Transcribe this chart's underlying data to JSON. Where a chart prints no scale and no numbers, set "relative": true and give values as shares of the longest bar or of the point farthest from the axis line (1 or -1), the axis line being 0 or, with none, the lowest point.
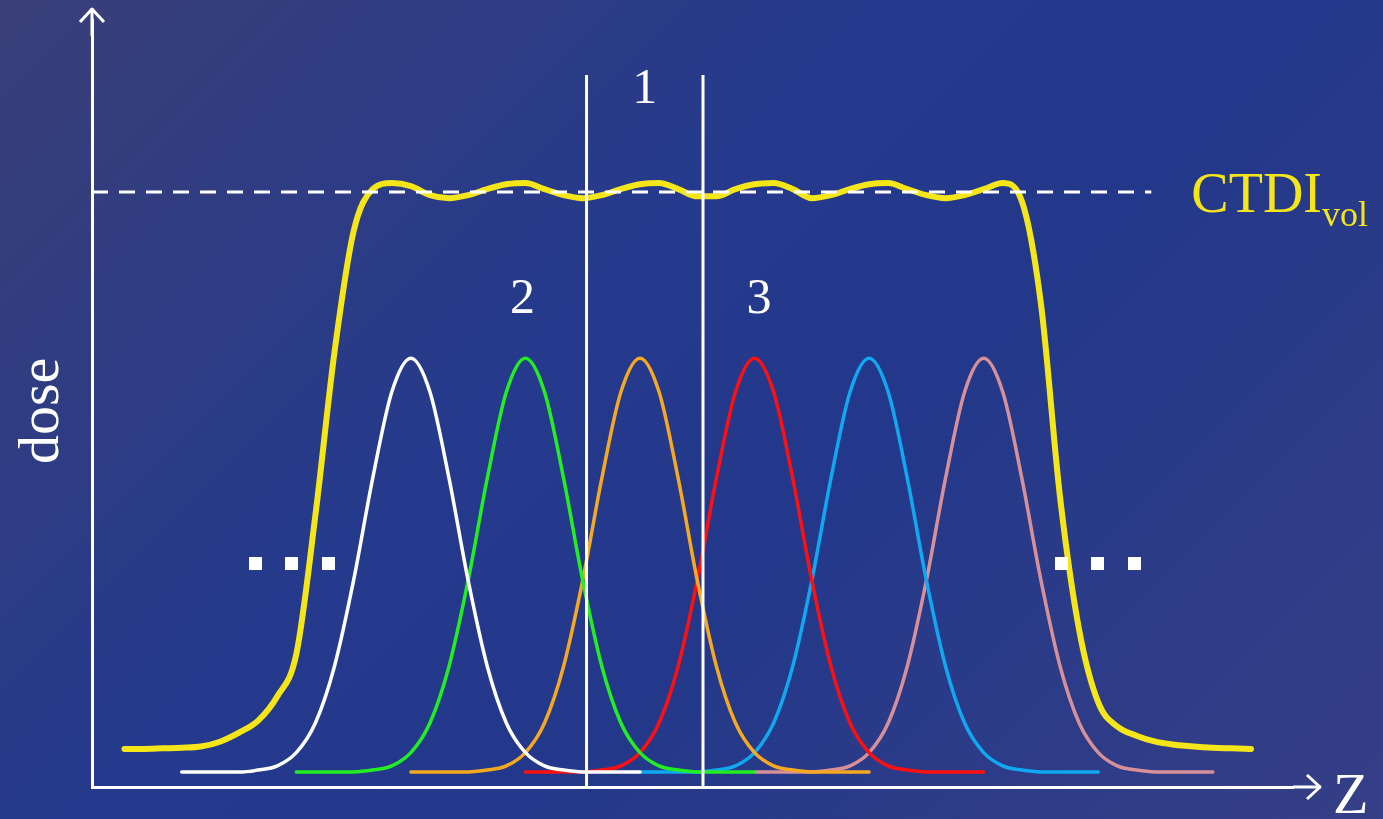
{
  "chart_data": {
    "type": "line",
    "relative": true,
    "xlabel": "Z",
    "ylabel": "dose",
    "tick_labels": false,
    "grid": false,
    "legend": false,
    "marker": "none",
    "line_style": "solid",
    "categories": [
      null,
      null,
      null,
      null,
      null,
      null,
      null,
      null,
      null,
      null,
      null,
      null,
      null,
      null,
      null,
      null,
      null,
      null,
      null,
      null,
      null,
      null,
      null,
      null,
      null,
      null,
      null,
      null,
      null,
      null,
      null,
      null,
      null,
      null,
      null,
      null,
      null,
      null,
      null,
      null,
      null,
      null,
      null,
      null,
      null,
      null,
      null,
      null,
      null,
      null,
      null,
      null,
      null,
      null,
      null,
      null,
      null,
      null,
      null,
      null
    ],
    "series": [
      {
        "color": "#f5e61a",
        "values": [
          0.063,
          0.063,
          0.064,
          0.065,
          0.067,
          0.075,
          0.09,
          0.11,
          0.15,
          0.22,
          0.45,
          0.72,
          0.92,
          0.99,
          1,
          0.995,
          0.98,
          0.975,
          0.98,
          0.99,
          0.998,
          1,
          0.99,
          0.98,
          0.975,
          0.98,
          0.99,
          0.998,
          1,
          0.99,
          0.978,
          0.978,
          0.99,
          0.998,
          1,
          0.99,
          0.975,
          0.98,
          0.99,
          0.998,
          1,
          0.99,
          0.98,
          0.975,
          0.98,
          0.99,
          1,
          0.97,
          0.8,
          0.48,
          0.26,
          0.14,
          0.1,
          0.085,
          0.075,
          0.07,
          0.067,
          0.065,
          0.064,
          0.063
        ]
      },
      {
        "color": "#ffffff",
        "values": [
          null,
          null,
          null,
          0.025,
          0.025,
          0.025,
          0.025,
          0.028,
          0.035,
          0.057,
          0.106,
          0.2,
          0.342,
          0.511,
          0.654,
          0.71,
          0.654,
          0.511,
          0.342,
          0.2,
          0.106,
          0.057,
          0.035,
          0.028,
          0.025,
          0.025,
          0.025,
          0.025,
          null,
          null,
          null,
          null,
          null,
          null,
          null,
          null,
          null,
          null,
          null,
          null,
          null,
          null,
          null,
          null,
          null,
          null,
          null,
          null,
          null,
          null,
          null,
          null,
          null,
          null,
          null,
          null,
          null,
          null,
          null,
          null
        ]
      },
      {
        "color": "#22ee22",
        "values": [
          null,
          null,
          null,
          null,
          null,
          null,
          null,
          null,
          null,
          0.025,
          0.025,
          0.025,
          0.025,
          0.028,
          0.035,
          0.057,
          0.106,
          0.2,
          0.342,
          0.511,
          0.654,
          0.71,
          0.654,
          0.511,
          0.342,
          0.2,
          0.106,
          0.057,
          0.035,
          0.028,
          0.025,
          0.025,
          0.025,
          0.025,
          null,
          null,
          null,
          null,
          null,
          null,
          null,
          null,
          null,
          null,
          null,
          null,
          null,
          null,
          null,
          null,
          null,
          null,
          null,
          null,
          null,
          null,
          null,
          null,
          null,
          null
        ]
      },
      {
        "color": "#f5a820",
        "values": [
          null,
          null,
          null,
          null,
          null,
          null,
          null,
          null,
          null,
          null,
          null,
          null,
          null,
          null,
          null,
          0.025,
          0.025,
          0.025,
          0.025,
          0.028,
          0.035,
          0.057,
          0.106,
          0.2,
          0.342,
          0.511,
          0.654,
          0.71,
          0.654,
          0.511,
          0.342,
          0.2,
          0.106,
          0.057,
          0.035,
          0.028,
          0.025,
          0.025,
          0.025,
          0.025,
          null,
          null,
          null,
          null,
          null,
          null,
          null,
          null,
          null,
          null,
          null,
          null,
          null,
          null,
          null,
          null,
          null,
          null,
          null,
          null
        ]
      },
      {
        "color": "#ff1010",
        "values": [
          null,
          null,
          null,
          null,
          null,
          null,
          null,
          null,
          null,
          null,
          null,
          null,
          null,
          null,
          null,
          null,
          null,
          null,
          null,
          null,
          null,
          0.025,
          0.025,
          0.025,
          0.025,
          0.028,
          0.035,
          0.057,
          0.106,
          0.2,
          0.342,
          0.511,
          0.654,
          0.71,
          0.654,
          0.511,
          0.342,
          0.2,
          0.106,
          0.057,
          0.035,
          0.028,
          0.025,
          0.025,
          0.025,
          0.025,
          null,
          null,
          null,
          null,
          null,
          null,
          null,
          null,
          null,
          null,
          null,
          null,
          null,
          null
        ]
      },
      {
        "color": "#10a8f0",
        "values": [
          null,
          null,
          null,
          null,
          null,
          null,
          null,
          null,
          null,
          null,
          null,
          null,
          null,
          null,
          null,
          null,
          null,
          null,
          null,
          null,
          null,
          null,
          null,
          null,
          null,
          null,
          null,
          0.025,
          0.025,
          0.025,
          0.025,
          0.028,
          0.035,
          0.057,
          0.106,
          0.2,
          0.342,
          0.511,
          0.654,
          0.71,
          0.654,
          0.511,
          0.342,
          0.2,
          0.106,
          0.057,
          0.035,
          0.028,
          0.025,
          0.025,
          0.025,
          0.025,
          null,
          null,
          null,
          null,
          null,
          null,
          null,
          null
        ]
      },
      {
        "color": "#d89098",
        "values": [
          null,
          null,
          null,
          null,
          null,
          null,
          null,
          null,
          null,
          null,
          null,
          null,
          null,
          null,
          null,
          null,
          null,
          null,
          null,
          null,
          null,
          null,
          null,
          null,
          null,
          null,
          null,
          null,
          null,
          null,
          null,
          null,
          null,
          0.025,
          0.025,
          0.025,
          0.025,
          0.028,
          0.035,
          0.057,
          0.106,
          0.2,
          0.342,
          0.511,
          0.654,
          0.71,
          0.654,
          0.511,
          0.342,
          0.2,
          0.106,
          0.057,
          0.035,
          0.028,
          0.025,
          0.025,
          0.025,
          0.025,
          null,
          null
        ]
      }
    ],
    "ref_lines": [
      {
        "axis": "y",
        "value": 0.985,
        "label": "CTDI$_{vol}$",
        "color": "#ffffff",
        "line_style": "dashed"
      }
    ],
    "annotations": [
      "1",
      "2",
      "3"
    ]
  }
}
